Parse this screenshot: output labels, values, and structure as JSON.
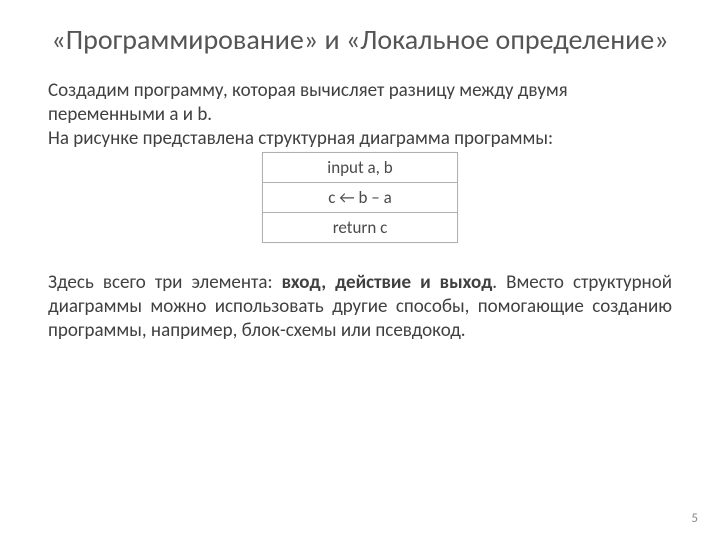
{
  "title": "«Программирование» и «Локальное определение»",
  "para1_lines": [
    "Создадим программу, которая вычисляет разницу между двумя переменными a и b.",
    "На рисунке представлена структурная диаграмма программы:"
  ],
  "diagram": {
    "type": "table",
    "border_color": "#b0b0b0",
    "background_color": "#ffffff",
    "text_color": "#4a4a4a",
    "row_fontsize": 17,
    "rows": [
      "input a, b",
      "c ← b – a",
      "return c"
    ]
  },
  "para2_pre": "Здесь всего три элемента: ",
  "para2_bold": "вход, действие и выход",
  "para2_post": ". Вместо структурной диаграммы можно использовать другие способы, помогающие созданию программы, например, блок-схемы или псевдокод.",
  "page_number": "5",
  "colors": {
    "title_color": "#555555",
    "body_color": "#404040",
    "bg": "#ffffff"
  },
  "typography": {
    "title_fontsize": 28,
    "body_fontsize": 19,
    "pagenum_fontsize": 13,
    "font_family": "Calibri"
  }
}
